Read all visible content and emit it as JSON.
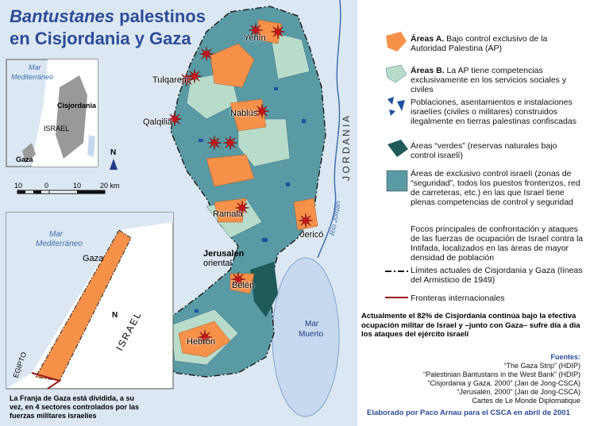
{
  "title": {
    "line1_italic": "Bantustanes",
    "line1_rest": " palestinos",
    "line2": "en Cisjordania y Gaza"
  },
  "locator": {
    "sea": [
      "Mar",
      "Mediterráneo"
    ],
    "west_bank": "Cisjordania",
    "israel": "ISRAEL",
    "gaza": "Gaza",
    "north": "N"
  },
  "scale": {
    "labels": [
      "10",
      "0",
      "10",
      "20 km"
    ]
  },
  "gaza_inset": {
    "sea": [
      "Mar",
      "Mediterráneo"
    ],
    "gaza": "Gaza",
    "israel": "ISRAEL",
    "egypt": "EGIPTO",
    "caption": "La Franja de Gaza está dividida, a su vez, en 4 sectores controlados por las fuerzas militares israelíes"
  },
  "map": {
    "cities": [
      "Yenín",
      "Tulqarem",
      "Qalqilia",
      "Nablús",
      "Ramala",
      "Jericó",
      "Belén",
      "Hebrón"
    ],
    "jerusalem": [
      "Jerusalén",
      "oriental"
    ],
    "dead_sea": [
      "Mar",
      "Muerto"
    ],
    "river": "Río Jordán",
    "jordan": "J O R D A N I A",
    "north": "N"
  },
  "legend": [
    {
      "bold": "Áreas A.",
      "text": " Bajo control exclusivo de la Autoridad Palestina (AP)"
    },
    {
      "bold": "Áreas B.",
      "text": " La AP tiene competencias exclusivamente en los servicios sociales y civiles"
    },
    {
      "bold": "",
      "text": "Poblaciones, asentamientos e instalaciones israelíes (civiles o militares) construidos ilegalmente en tierras palestinas confiscadas"
    },
    {
      "bold": "",
      "text": "Áreas “verdes” (reservas naturales bajo control israelí)"
    },
    {
      "bold": "",
      "text": "Áreas de exclusivo control israelí (zonas de “seguridad”, todos los puestos fronterizos, red de carreteras, etc.) en las que Israel tiene plenas competencias de control y seguridad"
    },
    {
      "bold": "",
      "text": "Focos principales de confrontación y ataques de las fuerzas de ocupación de Israel contra la Intifada, localizados en las áreas de mayor densidad de población"
    },
    {
      "bold": "",
      "text": "Límites actuales de Cisjordania y Gaza (líneas del Armisticio de 1949)"
    },
    {
      "bold": "",
      "text": "Fronteras internacionales"
    }
  ],
  "note": "Actualmente el 82% de Cisjordania continúa bajo la efectiva ocupación militar de Israel y –junto con Gaza– sufre día a día los ataques del ejército israelí",
  "sources": {
    "heading": "Fuentes:",
    "lines": [
      "“The Gaza Strip” (HDIP)",
      "“Palestinian Bantustans in the West Bank” (HDIP)",
      "“Cisjordania y Gaza. 2000” (Jan de Jong-CSCA)",
      "“Jerusalén. 2000” (Jan de Jong-CSCA)",
      "Cartes de Le Monde Diplomatique"
    ]
  },
  "credit": "Elaborado por Paco Arnau para el CSCA en abril de 2001"
}
